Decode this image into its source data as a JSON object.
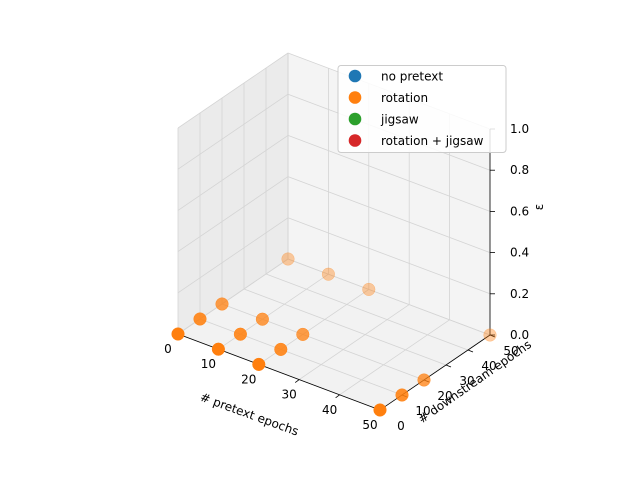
{
  "chart_data": {
    "type": "scatter",
    "projection": "3d",
    "title": "",
    "xlabel": "# pretext epochs",
    "ylabel": "# downstream epochs",
    "zlabel": "ε",
    "xticks": [
      0,
      10,
      20,
      30,
      40,
      50
    ],
    "yticks": [
      0,
      10,
      20,
      30,
      40,
      50
    ],
    "zticks": [
      "0.0",
      "0.2",
      "0.4",
      "0.6",
      "0.8",
      "1.0"
    ],
    "xlim": [
      0,
      50
    ],
    "ylim": [
      0,
      50
    ],
    "zlim": [
      0,
      1
    ],
    "grid": true,
    "legend_position": "top-right",
    "series": [
      {
        "name": "no pretext",
        "color": "#1f77b4",
        "points": []
      },
      {
        "name": "rotation",
        "color": "#ff7f0e",
        "points": [
          {
            "x": 0,
            "y": 0,
            "z": 0
          },
          {
            "x": 10,
            "y": 0,
            "z": 0
          },
          {
            "x": 20,
            "y": 0,
            "z": 0
          },
          {
            "x": 50,
            "y": 0,
            "z": 0
          },
          {
            "x": 0,
            "y": 10,
            "z": 0
          },
          {
            "x": 10,
            "y": 10,
            "z": 0
          },
          {
            "x": 20,
            "y": 10,
            "z": 0
          },
          {
            "x": 50,
            "y": 10,
            "z": 0
          },
          {
            "x": 0,
            "y": 20,
            "z": 0
          },
          {
            "x": 10,
            "y": 20,
            "z": 0
          },
          {
            "x": 20,
            "y": 20,
            "z": 0
          },
          {
            "x": 50,
            "y": 20,
            "z": 0
          },
          {
            "x": 0,
            "y": 50,
            "z": 0
          },
          {
            "x": 10,
            "y": 50,
            "z": 0
          },
          {
            "x": 20,
            "y": 50,
            "z": 0
          },
          {
            "x": 50,
            "y": 50,
            "z": 0
          }
        ]
      },
      {
        "name": "jigsaw",
        "color": "#2ca02c",
        "points": []
      },
      {
        "name": "rotation + jigsaw",
        "color": "#d62728",
        "points": []
      }
    ]
  }
}
